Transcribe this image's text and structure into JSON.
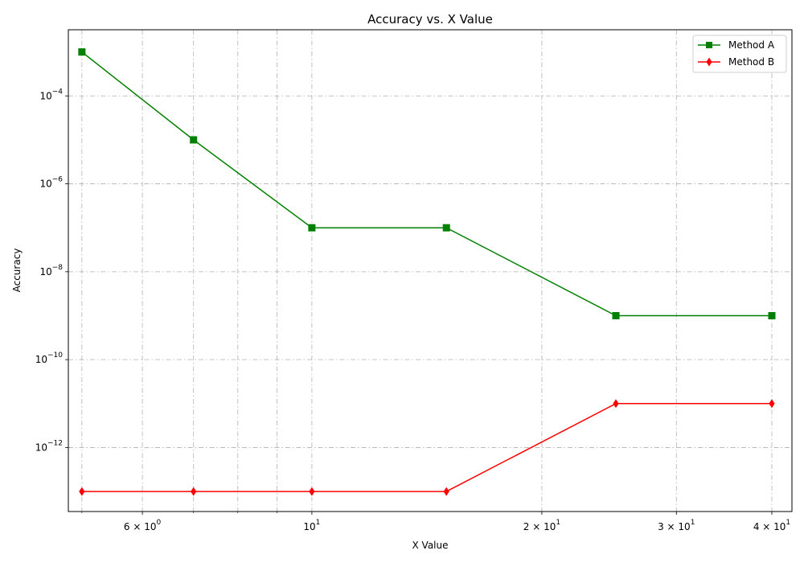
{
  "chart_data": {
    "type": "line",
    "title": "Accuracy vs. X Value",
    "xlabel": "X Value",
    "ylabel": "Accuracy",
    "xscale": "log",
    "yscale": "log",
    "xlim": [
      4.8,
      42.5
    ],
    "ylim": [
      3.5e-14,
      0.0032
    ],
    "grid": true,
    "legend_position": "top-right",
    "x": [
      5,
      7,
      10,
      15,
      25,
      40
    ],
    "series": [
      {
        "name": "Method A",
        "values": [
          0.001,
          1e-05,
          1e-07,
          1e-07,
          1e-09,
          1e-09
        ],
        "color": "#008000",
        "marker": "square"
      },
      {
        "name": "Method B",
        "values": [
          1e-13,
          1e-13,
          1e-13,
          1e-13,
          1e-11,
          1e-11
        ],
        "color": "#ff0000",
        "marker": "diamond"
      }
    ],
    "x_major_ticks": [
      {
        "value": 6,
        "mantissa": "6",
        "times": "×",
        "base": "10",
        "exp": "0"
      },
      {
        "value": 10,
        "mantissa": "",
        "times": "",
        "base": "10",
        "exp": "1"
      },
      {
        "value": 20,
        "mantissa": "2",
        "times": "×",
        "base": "10",
        "exp": "1"
      },
      {
        "value": 30,
        "mantissa": "3",
        "times": "×",
        "base": "10",
        "exp": "1"
      },
      {
        "value": 40,
        "mantissa": "4",
        "times": "×",
        "base": "10",
        "exp": "1"
      }
    ],
    "x_minor_ticks": [
      5,
      7,
      8,
      9
    ],
    "y_major_ticks": [
      {
        "value": 0.0001,
        "base": "10",
        "exp": "−4"
      },
      {
        "value": 1e-06,
        "base": "10",
        "exp": "−6"
      },
      {
        "value": 1e-08,
        "base": "10",
        "exp": "−8"
      },
      {
        "value": 1e-10,
        "base": "10",
        "exp": "−10"
      },
      {
        "value": 1e-12,
        "base": "10",
        "exp": "−12"
      }
    ]
  }
}
